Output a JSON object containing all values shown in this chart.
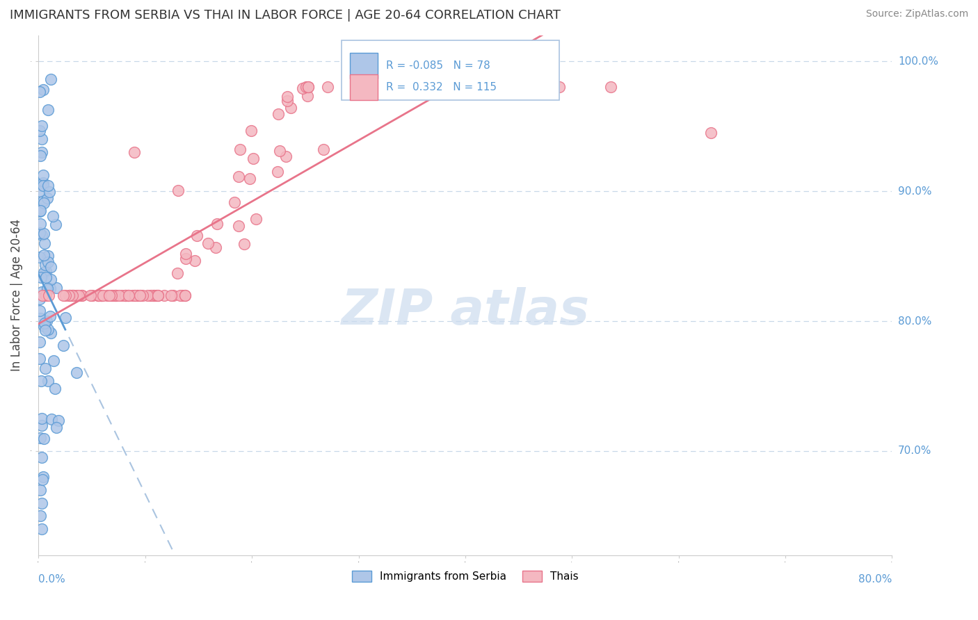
{
  "title": "IMMIGRANTS FROM SERBIA VS THAI IN LABOR FORCE | AGE 20-64 CORRELATION CHART",
  "source_text": "Source: ZipAtlas.com",
  "ylabel": "In Labor Force | Age 20-64",
  "y_tick_labels": [
    "100.0%",
    "90.0%",
    "80.0%",
    "70.0%"
  ],
  "y_tick_values": [
    1.0,
    0.9,
    0.8,
    0.7
  ],
  "xlim": [
    0.0,
    0.8
  ],
  "ylim": [
    0.62,
    1.02
  ],
  "legend_R1": "-0.085",
  "legend_N1": "78",
  "legend_R2": "0.332",
  "legend_N2": "115",
  "serbia_color": "#aec6e8",
  "serbia_edge": "#5b9bd5",
  "thai_color": "#f4b8c1",
  "thai_edge": "#e8748a",
  "serbia_trend_color": "#5b9bd5",
  "thai_trend_color": "#e8748a",
  "dashed_trend_color": "#aac4e0",
  "watermark_color": "#ccdcee",
  "label_color": "#5b9bd5",
  "title_color": "#333333",
  "source_color": "#888888"
}
